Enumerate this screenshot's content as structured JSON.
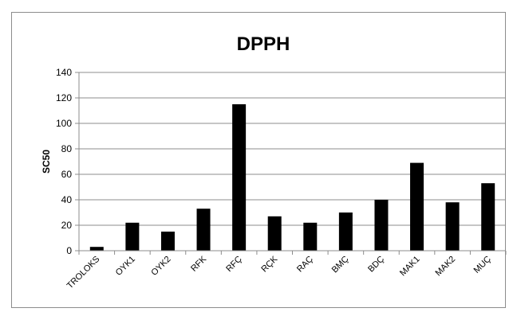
{
  "chart_data": {
    "type": "bar",
    "title": "DPPH",
    "xlabel": "",
    "ylabel": "SC50",
    "ylim": [
      0,
      140
    ],
    "yticks": [
      0,
      20,
      40,
      60,
      80,
      100,
      120,
      140
    ],
    "grid": true,
    "legend": "none",
    "bar_color": "#000000",
    "categories": [
      "TROLOKS",
      "OYK1",
      "OYK2",
      "RFK",
      "RFÇ",
      "RÇK",
      "RAÇ",
      "BMÇ",
      "BDÇ",
      "MAK1",
      "MAK2",
      "MUÇ"
    ],
    "values": [
      3,
      22,
      15,
      33,
      115,
      27,
      22,
      30,
      40,
      69,
      38,
      53
    ]
  }
}
